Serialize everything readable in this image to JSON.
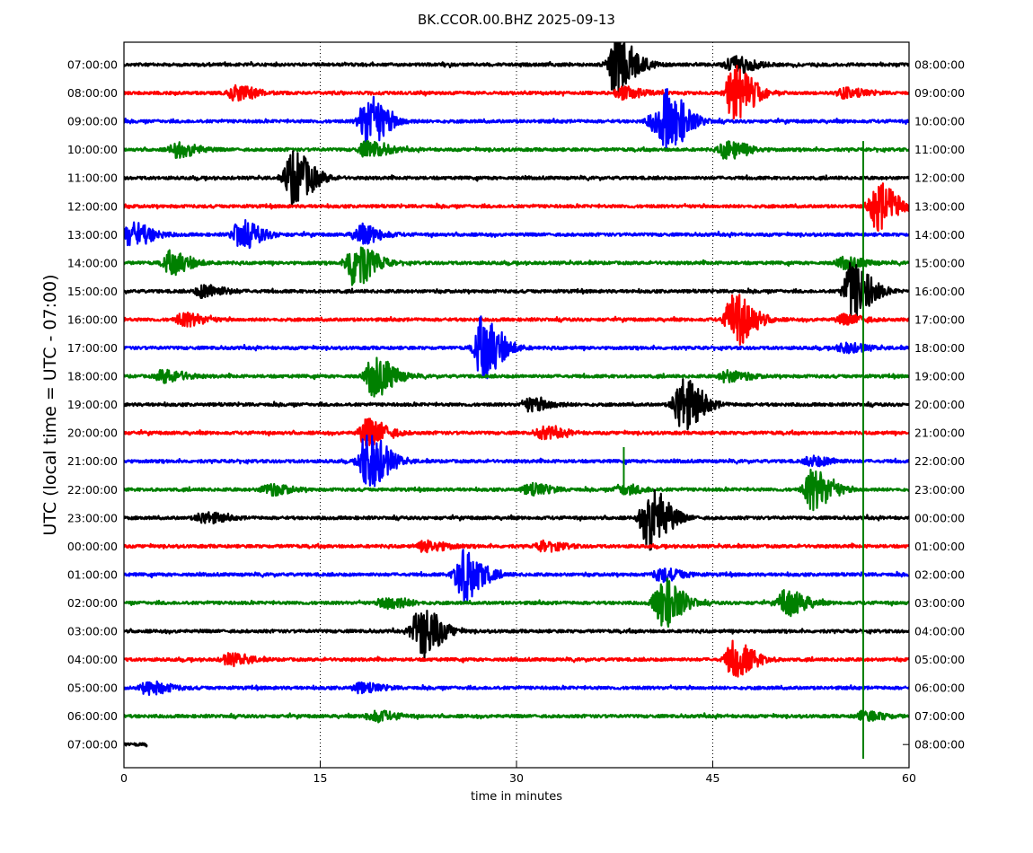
{
  "chart_data": {
    "type": "line",
    "title": "BK.CCOR.00.BHZ 2025-09-13",
    "xlabel": "time in minutes",
    "ylabel": "UTC (local time = UTC - 07:00)",
    "xlim": [
      0,
      60
    ],
    "x_ticks": [
      0,
      15,
      30,
      45,
      60
    ],
    "x_tick_labels": [
      "0",
      "15",
      "30",
      "45",
      "60"
    ],
    "grid": "vertical dotted lines at 15, 30, 45",
    "left_labels": [
      "07:00:00",
      "08:00:00",
      "09:00:00",
      "10:00:00",
      "11:00:00",
      "12:00:00",
      "13:00:00",
      "14:00:00",
      "15:00:00",
      "16:00:00",
      "17:00:00",
      "18:00:00",
      "19:00:00",
      "20:00:00",
      "21:00:00",
      "22:00:00",
      "23:00:00",
      "00:00:00",
      "01:00:00",
      "02:00:00",
      "03:00:00",
      "04:00:00",
      "05:00:00",
      "06:00:00",
      "07:00:00"
    ],
    "right_labels": [
      "08:00:00",
      "09:00:00",
      "10:00:00",
      "11:00:00",
      "12:00:00",
      "13:00:00",
      "14:00:00",
      "15:00:00",
      "16:00:00",
      "17:00:00",
      "18:00:00",
      "19:00:00",
      "20:00:00",
      "21:00:00",
      "22:00:00",
      "23:00:00",
      "00:00:00",
      "01:00:00",
      "02:00:00",
      "03:00:00",
      "04:00:00",
      "05:00:00",
      "06:00:00",
      "07:00:00",
      "08:00:00"
    ],
    "trace_colors": [
      "#000000",
      "#ff0000",
      "#0000ff",
      "#008000"
    ],
    "traces": [
      {
        "events": [
          [
            37.5,
            3.2
          ],
          [
            46.5,
            1.0
          ]
        ],
        "end": 60
      },
      {
        "events": [
          [
            8.5,
            0.8
          ],
          [
            38,
            0.6
          ],
          [
            46.5,
            3.0
          ],
          [
            55,
            0.5
          ]
        ],
        "end": 60
      },
      {
        "events": [
          [
            18.5,
            2.8
          ],
          [
            40.5,
            1.0
          ],
          [
            41.5,
            2.8
          ]
        ],
        "end": 60
      },
      {
        "events": [
          [
            4,
            0.8
          ],
          [
            18.5,
            0.9
          ],
          [
            46,
            1.0
          ]
        ],
        "end": 60
      },
      {
        "events": [
          [
            12.8,
            3.0
          ]
        ],
        "end": 60
      },
      {
        "events": [
          [
            57.5,
            2.6
          ]
        ],
        "end": 60
      },
      {
        "events": [
          [
            0.5,
            1.3
          ],
          [
            8.8,
            1.5
          ],
          [
            18,
            1.0
          ]
        ],
        "end": 60
      },
      {
        "events": [
          [
            3.5,
            1.2
          ],
          [
            17.5,
            2.6
          ],
          [
            55,
            0.6
          ]
        ],
        "end": 60
      },
      {
        "events": [
          [
            6,
            0.7
          ],
          [
            55.5,
            3.2
          ]
        ],
        "end": 60
      },
      {
        "events": [
          [
            4.5,
            0.7
          ],
          [
            46.5,
            3.0
          ],
          [
            55,
            0.5
          ]
        ],
        "end": 60
      },
      {
        "events": [
          [
            27.3,
            3.4
          ],
          [
            55,
            0.5
          ]
        ],
        "end": 60
      },
      {
        "events": [
          [
            3,
            0.7
          ],
          [
            19,
            2.2
          ],
          [
            46,
            0.6
          ]
        ],
        "end": 60
      },
      {
        "events": [
          [
            31,
            0.7
          ],
          [
            42.5,
            3.0
          ]
        ],
        "end": 60
      },
      {
        "events": [
          [
            18.5,
            1.5
          ],
          [
            32,
            0.6
          ]
        ],
        "end": 60
      },
      {
        "events": [
          [
            18.5,
            3.2
          ],
          [
            52.5,
            0.5
          ]
        ],
        "end": 60
      },
      {
        "events": [
          [
            11,
            0.6
          ],
          [
            31,
            0.6
          ],
          [
            38,
            0.5
          ],
          [
            52.5,
            2.2
          ]
        ],
        "end": 60
      },
      {
        "events": [
          [
            6,
            0.6
          ],
          [
            40,
            3.6
          ]
        ],
        "end": 60
      },
      {
        "events": [
          [
            23,
            0.6
          ],
          [
            32,
            0.5
          ]
        ],
        "end": 60
      },
      {
        "events": [
          [
            25.8,
            3.0
          ],
          [
            41,
            0.7
          ]
        ],
        "end": 60
      },
      {
        "events": [
          [
            20,
            0.7
          ],
          [
            41,
            2.8
          ],
          [
            50.5,
            1.4
          ]
        ],
        "end": 60
      },
      {
        "events": [
          [
            22.5,
            3.2
          ]
        ],
        "end": 60
      },
      {
        "events": [
          [
            8,
            0.6
          ],
          [
            46.5,
            2.0
          ]
        ],
        "end": 60
      },
      {
        "events": [
          [
            1.8,
            0.7
          ],
          [
            18,
            0.5
          ]
        ],
        "end": 60
      },
      {
        "events": [
          [
            19,
            0.6
          ],
          [
            56.5,
            0.5
          ]
        ],
        "end": 60
      },
      {
        "events": [],
        "end": 1.8
      }
    ],
    "spikes": [
      {
        "x": 56.5,
        "row_from": 2.7,
        "row_to": 24.5,
        "color": "#008000"
      },
      {
        "x": 38.2,
        "row_from": 13.5,
        "row_to": 15.2,
        "color": "#008000"
      }
    ]
  }
}
